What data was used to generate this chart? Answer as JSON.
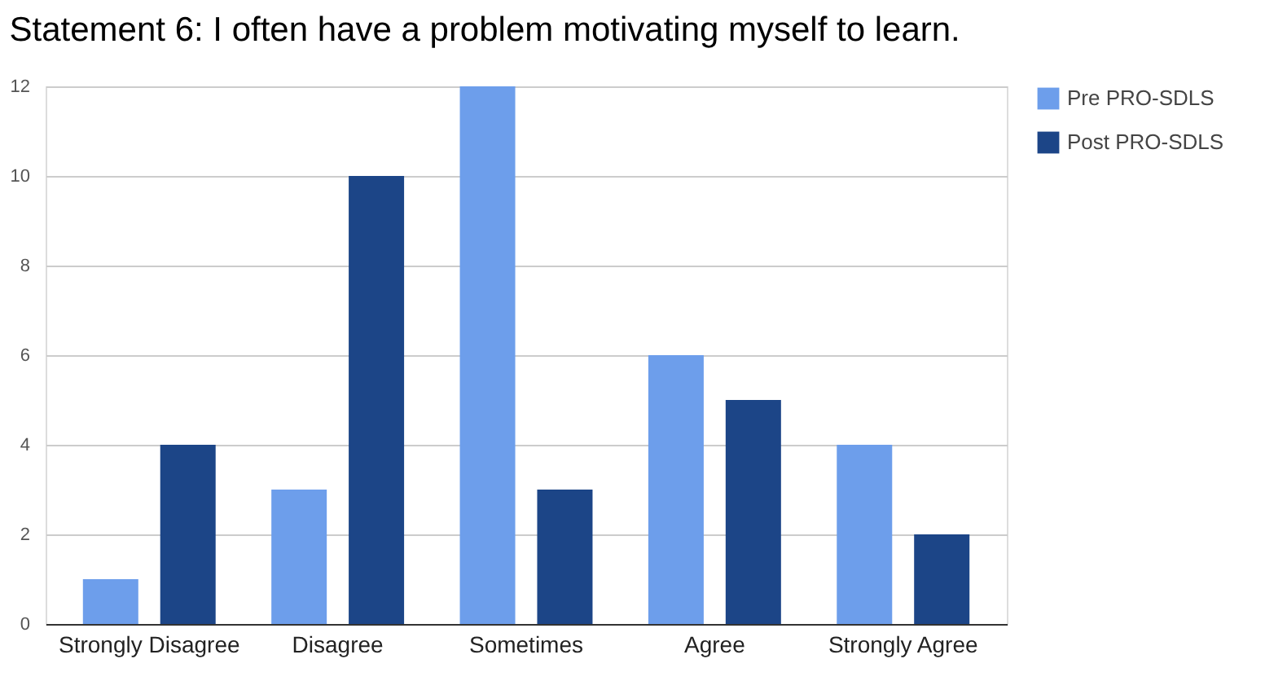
{
  "chart_data": {
    "type": "bar",
    "title": "Statement 6: I often have a problem motivating myself to learn.",
    "categories": [
      "Strongly Disagree",
      "Disagree",
      "Sometimes",
      "Agree",
      "Strongly Agree"
    ],
    "series": [
      {
        "name": "Pre PRO-SDLS",
        "color": "#6d9eeb",
        "values": [
          1,
          3,
          12,
          6,
          4
        ]
      },
      {
        "name": "Post PRO-SDLS",
        "color": "#1c4587",
        "values": [
          4,
          10,
          3,
          5,
          2
        ]
      }
    ],
    "ylim": [
      0,
      12
    ],
    "yticks": [
      0,
      2,
      4,
      6,
      8,
      10,
      12
    ],
    "grid": "y",
    "legend": "top right"
  }
}
